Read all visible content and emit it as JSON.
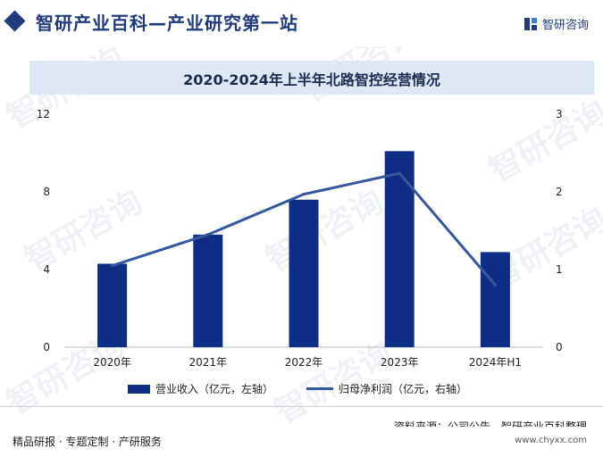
{
  "header": {
    "title": "智研产业百科—产业研究第一站",
    "logo_text": "智研咨询"
  },
  "watermark": "智研咨询",
  "chart_data": {
    "type": "bar",
    "title": "2020-2024年上半年北路智控经营情况",
    "categories": [
      "2020年",
      "2021年",
      "2022年",
      "2023年",
      "2024年H1"
    ],
    "series": [
      {
        "name": "营业收入（亿元，左轴）",
        "kind": "bar",
        "axis": "left",
        "color": "#0e2e86",
        "values": [
          4.3,
          5.8,
          7.6,
          10.1,
          4.9
        ]
      },
      {
        "name": "归母净利润（亿元，右轴）",
        "kind": "line",
        "axis": "right",
        "color": "#35579d",
        "values": [
          1.05,
          1.45,
          1.97,
          2.24,
          0.8
        ]
      }
    ],
    "y_left": {
      "ylim": [
        0,
        12
      ],
      "ticks": [
        "0",
        "4",
        "8",
        "12"
      ]
    },
    "y_right": {
      "ylim": [
        0,
        3
      ],
      "ticks": [
        "0",
        "1",
        "2",
        "3"
      ]
    },
    "grid": false,
    "legend": "bottom"
  },
  "source": "资料来源：公司公告、智研产业百科整理",
  "footer": {
    "left": "精品研报 · 专题定制 · 产研服务",
    "url": "www.chyxx.com"
  }
}
